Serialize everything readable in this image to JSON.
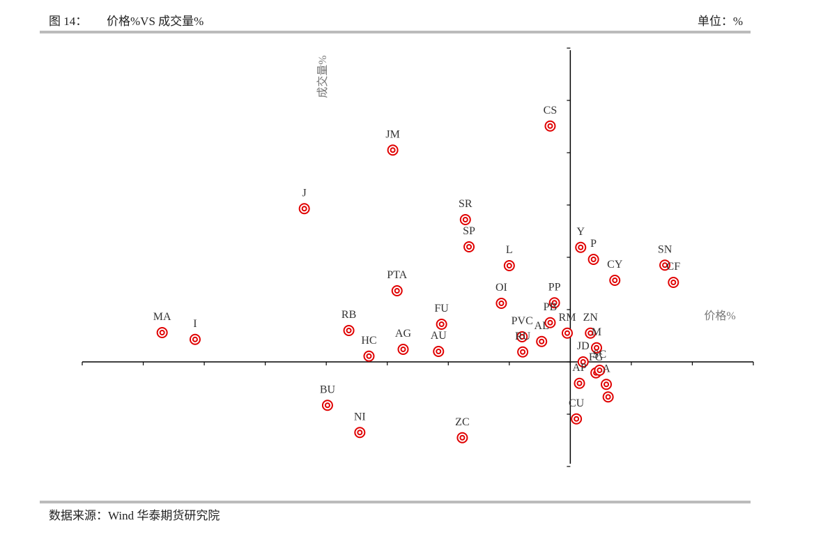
{
  "chart_data": {
    "type": "scatter",
    "figure_label": "图 14：",
    "title": "价格%VS 成交量%",
    "unit": "单位：%",
    "source": "数据来源：Wind  华泰期货研究院",
    "x_label": "价格%",
    "y_label": "成交量%",
    "xlim": [
      -8,
      3
    ],
    "xticks": [
      -8,
      -7,
      -6,
      -5,
      -4,
      -3,
      -2,
      -1,
      0,
      1,
      2,
      3
    ],
    "ylim": [
      -2,
      6
    ],
    "yticks": [
      -2,
      -1,
      0,
      1,
      2,
      3,
      4,
      5,
      6
    ],
    "labels": [
      "CS",
      "JM",
      "J",
      "SR",
      "SP",
      "L",
      "PTA",
      "OI",
      "PP",
      "FU",
      "PB",
      "RM",
      "MA",
      "I",
      "RB",
      "AG",
      "AU",
      "HC",
      "PVC",
      "AL",
      "RU",
      "Y",
      "P",
      "CY",
      "SN",
      "CF",
      "ZN",
      "M",
      "JD",
      "FG",
      "SC",
      "AP",
      "A",
      null,
      "CU",
      "BU",
      "NI",
      "ZC"
    ],
    "x": [
      -0.33,
      -2.91,
      -4.36,
      -1.72,
      -1.66,
      -1.0,
      -2.84,
      -1.13,
      -0.26,
      -2.11,
      -0.33,
      -0.05,
      -6.69,
      -6.15,
      -3.63,
      -2.74,
      -2.16,
      -3.3,
      -0.79,
      -0.47,
      -0.78,
      0.17,
      0.38,
      0.73,
      1.55,
      1.69,
      0.33,
      0.43,
      0.21,
      0.42,
      0.48,
      0.15,
      0.59,
      0.62,
      0.1,
      -3.98,
      -3.45,
      -1.77
    ],
    "series": [
      {
        "color": "#e00000",
        "values": [
          4.51,
          4.05,
          2.93,
          2.72,
          2.2,
          1.84,
          1.36,
          1.12,
          1.13,
          0.72,
          0.75,
          0.55,
          0.56,
          0.43,
          0.6,
          0.24,
          0.2,
          0.11,
          0.48,
          0.39,
          0.19,
          2.19,
          1.96,
          1.56,
          1.85,
          1.52,
          0.55,
          0.27,
          0.0,
          -0.21,
          -0.16,
          -0.41,
          -0.43,
          -0.67,
          -1.09,
          -0.83,
          -1.35,
          -1.45
        ]
      }
    ]
  }
}
